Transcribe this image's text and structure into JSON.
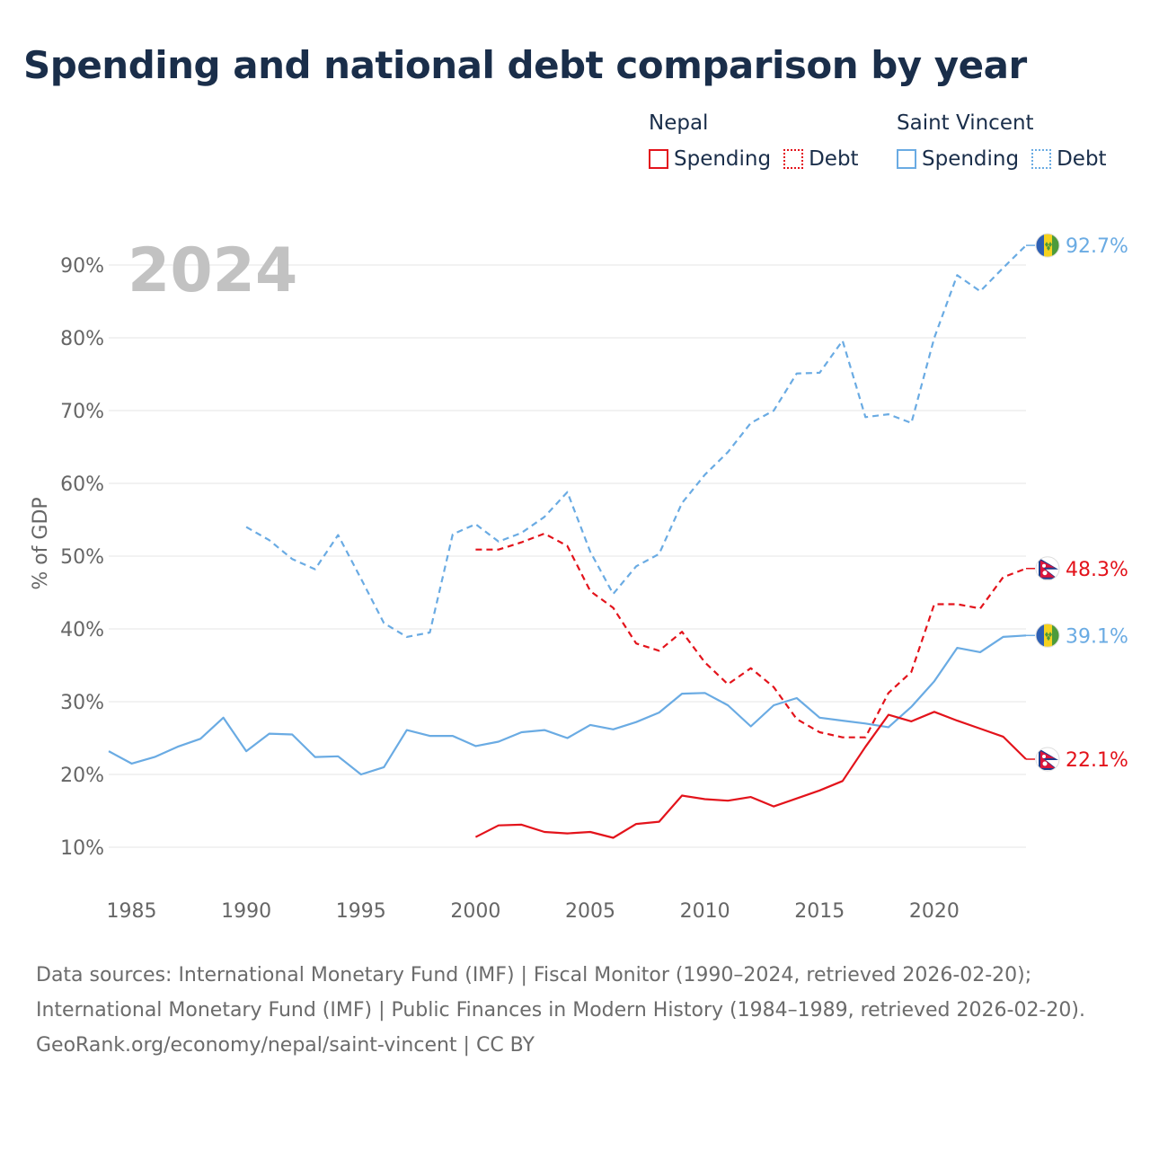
{
  "title": "Spending and national debt comparison by year",
  "legend": {
    "groups": [
      {
        "name": "Nepal",
        "items": [
          {
            "label": "Spending",
            "style": "solid"
          },
          {
            "label": "Debt",
            "style": "dotted"
          }
        ],
        "color": "#e3131b"
      },
      {
        "name": "Saint Vincent",
        "items": [
          {
            "label": "Spending",
            "style": "solid"
          },
          {
            "label": "Debt",
            "style": "dotted"
          }
        ],
        "color": "#6aabe3"
      }
    ]
  },
  "chart_data": {
    "type": "line",
    "year_label": "2024",
    "ylabel": "% of GDP",
    "xlabel": "",
    "xlim": [
      1984,
      2024
    ],
    "ylim": [
      5,
      97
    ],
    "x_ticks": [
      1985,
      1990,
      1995,
      2000,
      2005,
      2010,
      2015,
      2020
    ],
    "y_ticks": [
      {
        "value": 10,
        "label": "10%"
      },
      {
        "value": 20,
        "label": "20%"
      },
      {
        "value": 30,
        "label": "30%"
      },
      {
        "value": 40,
        "label": "40%"
      },
      {
        "value": 50,
        "label": "50%"
      },
      {
        "value": 60,
        "label": "60%"
      },
      {
        "value": 70,
        "label": "70%"
      },
      {
        "value": 80,
        "label": "80%"
      },
      {
        "value": 90,
        "label": "90%"
      }
    ],
    "grid": true,
    "series": [
      {
        "name": "Saint Vincent Debt",
        "country": "Saint Vincent",
        "metric": "Debt",
        "color": "#6aabe3",
        "dash": "dashed",
        "flag": "saint-vincent-flag-icon",
        "end_label": "92.7%",
        "x": [
          1990,
          1991,
          1992,
          1993,
          1994,
          1995,
          1996,
          1997,
          1998,
          1999,
          2000,
          2001,
          2002,
          2003,
          2004,
          2005,
          2006,
          2007,
          2008,
          2009,
          2010,
          2011,
          2012,
          2013,
          2014,
          2015,
          2016,
          2017,
          2018,
          2019,
          2020,
          2021,
          2022,
          2023,
          2024
        ],
        "values": [
          54.0,
          52.2,
          49.6,
          48.2,
          52.9,
          46.9,
          40.8,
          38.9,
          39.5,
          53.0,
          54.4,
          52.0,
          53.2,
          55.4,
          58.8,
          50.6,
          44.8,
          48.6,
          50.3,
          57.3,
          61.2,
          64.3,
          68.3,
          70.0,
          75.1,
          75.2,
          79.6,
          69.1,
          69.5,
          68.3,
          80.0,
          88.6,
          86.4,
          89.6,
          92.7
        ]
      },
      {
        "name": "Nepal Debt",
        "country": "Nepal",
        "metric": "Debt",
        "color": "#e3131b",
        "dash": "dashed",
        "flag": "nepal-flag-icon",
        "end_label": "48.3%",
        "x": [
          2000,
          2001,
          2002,
          2003,
          2004,
          2005,
          2006,
          2007,
          2008,
          2009,
          2010,
          2011,
          2012,
          2013,
          2014,
          2015,
          2016,
          2017,
          2018,
          2019,
          2020,
          2021,
          2022,
          2023,
          2024
        ],
        "values": [
          50.9,
          50.9,
          51.9,
          53.1,
          51.4,
          45.2,
          42.9,
          38.0,
          37.0,
          39.6,
          35.4,
          32.4,
          34.6,
          32.0,
          27.6,
          25.8,
          25.1,
          25.1,
          31.2,
          34.1,
          43.4,
          43.4,
          42.8,
          47.1,
          48.3
        ]
      },
      {
        "name": "Saint Vincent Spending",
        "country": "Saint Vincent",
        "metric": "Spending",
        "color": "#6aabe3",
        "dash": "solid",
        "flag": "saint-vincent-flag-icon",
        "end_label": "39.1%",
        "x": [
          1984,
          1985,
          1986,
          1987,
          1988,
          1989,
          1990,
          1991,
          1992,
          1993,
          1994,
          1995,
          1996,
          1997,
          1998,
          1999,
          2000,
          2001,
          2002,
          2003,
          2004,
          2005,
          2006,
          2007,
          2008,
          2009,
          2010,
          2011,
          2012,
          2013,
          2014,
          2015,
          2016,
          2017,
          2018,
          2019,
          2020,
          2021,
          2022,
          2023,
          2024
        ],
        "values": [
          23.2,
          21.5,
          22.4,
          23.8,
          24.9,
          27.8,
          23.2,
          25.6,
          25.5,
          22.4,
          22.5,
          20.0,
          21.0,
          26.1,
          25.3,
          25.3,
          23.9,
          24.5,
          25.8,
          26.1,
          25.0,
          26.8,
          26.2,
          27.2,
          28.5,
          31.1,
          31.2,
          29.5,
          26.6,
          29.5,
          30.5,
          27.8,
          27.4,
          27.0,
          26.5,
          29.3,
          32.8,
          37.4,
          36.8,
          38.9,
          39.1
        ]
      },
      {
        "name": "Nepal Spending",
        "country": "Nepal",
        "metric": "Spending",
        "color": "#e3131b",
        "dash": "solid",
        "flag": "nepal-flag-icon",
        "end_label": "22.1%",
        "x": [
          2000,
          2001,
          2002,
          2003,
          2004,
          2005,
          2006,
          2007,
          2008,
          2009,
          2010,
          2011,
          2012,
          2013,
          2014,
          2015,
          2016,
          2017,
          2018,
          2019,
          2020,
          2021,
          2022,
          2023,
          2024
        ],
        "values": [
          11.4,
          13.0,
          13.1,
          12.1,
          11.9,
          12.1,
          11.3,
          13.2,
          13.5,
          17.1,
          16.6,
          16.4,
          16.9,
          15.6,
          16.7,
          17.8,
          19.1,
          23.8,
          28.2,
          27.3,
          28.6,
          27.4,
          26.3,
          25.2,
          22.1
        ]
      }
    ]
  },
  "sources": {
    "line1": "Data sources: International Monetary Fund (IMF) | Fiscal Monitor (1990–2024, retrieved 2026-02-20); International Monetary Fund (IMF) | Public Finances in Modern History (1984–1989, retrieved 2026-02-20).",
    "line2": "GeoRank.org/economy/nepal/saint-vincent | CC BY"
  }
}
